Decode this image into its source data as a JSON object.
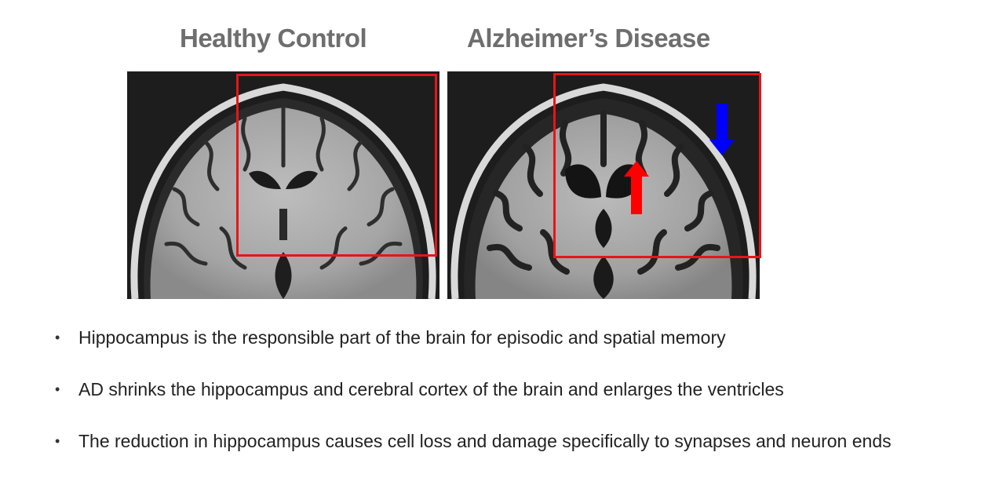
{
  "panels": [
    {
      "title": "Healthy Control",
      "image": "coronal-mri-brain"
    },
    {
      "title": "Alzheimer’s Disease",
      "image": "coronal-mri-brain"
    }
  ],
  "markers": {
    "roi_color": "#e8141a",
    "up_arrow_color": "#ff0000",
    "down_arrow_color": "#0000ff"
  },
  "bullets": [
    "Hippocampus is the responsible part of the brain for episodic and spatial memory",
    "AD shrinks the hippocampus and cerebral cortex of the brain and enlarges the ventricles",
    "The reduction in hippocampus causes cell loss and damage specifically to synapses and neuron ends"
  ]
}
